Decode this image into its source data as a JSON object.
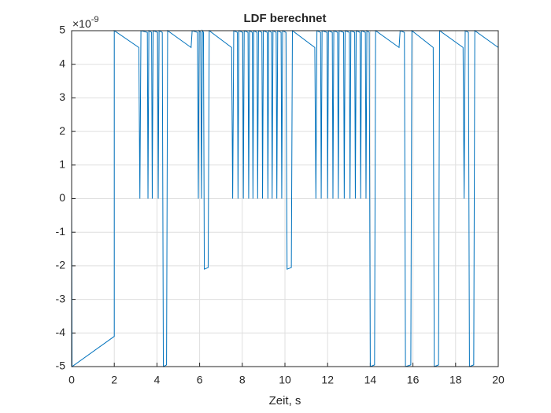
{
  "chart_data": {
    "type": "line",
    "title": "LDF berechnet",
    "x_label": "Zeit, s",
    "y_exponent": {
      "base": "×10",
      "power": "-9"
    },
    "x": [
      0,
      0.02,
      2,
      2,
      3.15,
      3.2,
      3.25,
      3.55,
      3.58,
      3.62,
      3.75,
      3.78,
      3.82,
      4.03,
      4.06,
      4.1,
      4.25,
      4.3,
      4.45,
      4.5,
      5.6,
      5.65,
      5.9,
      5.94,
      5.98,
      6.05,
      6.09,
      6.13,
      6.18,
      6.22,
      6.4,
      6.45,
      7.5,
      7.55,
      7.6,
      7.77,
      7.8,
      7.84,
      8.02,
      8.05,
      8.09,
      8.27,
      8.3,
      8.34,
      8.47,
      8.5,
      8.54,
      8.69,
      8.72,
      8.76,
      8.92,
      8.95,
      8.99,
      9.17,
      9.2,
      9.24,
      9.37,
      9.4,
      9.44,
      9.59,
      9.62,
      9.66,
      9.82,
      9.85,
      9.89,
      10.05,
      10.1,
      10.3,
      10.35,
      11.4,
      11.45,
      11.5,
      11.67,
      11.7,
      11.74,
      11.97,
      12,
      12.04,
      12.22,
      12.25,
      12.29,
      12.47,
      12.5,
      12.54,
      12.75,
      12.78,
      12.82,
      13.02,
      13.05,
      13.09,
      13.27,
      13.3,
      13.34,
      13.52,
      13.55,
      13.59,
      13.77,
      13.8,
      13.84,
      13.95,
      14,
      14.2,
      14.25,
      15.35,
      15.4,
      15.6,
      15.65,
      15.9,
      15.95,
      16.95,
      17,
      17.2,
      17.25,
      18.35,
      18.4,
      18.45,
      18.6,
      18.65,
      18.85,
      18.9,
      20
    ],
    "series": [
      {
        "color": "#0072bd",
        "values": [
          0,
          -5,
          -4.1,
          5,
          4.5,
          0,
          5,
          4.95,
          0,
          5,
          4.95,
          0,
          5,
          4.95,
          0,
          5,
          4.95,
          -5,
          -4.95,
          5,
          4.5,
          5,
          4.95,
          0,
          5,
          4.95,
          0,
          5,
          4.95,
          -2.1,
          -2.05,
          5,
          4.5,
          0,
          5,
          4.95,
          0,
          5,
          4.95,
          0,
          5,
          4.95,
          0,
          5,
          4.95,
          0,
          5,
          4.95,
          0,
          5,
          4.95,
          0,
          5,
          4.95,
          0,
          5,
          4.95,
          0,
          5,
          4.95,
          0,
          5,
          4.95,
          0,
          5,
          4.95,
          -2.1,
          -2.05,
          5,
          4.5,
          0,
          5,
          4.95,
          0,
          5,
          4.95,
          0,
          5,
          4.95,
          0,
          5,
          4.95,
          0,
          5,
          4.95,
          0,
          5,
          4.95,
          0,
          5,
          4.95,
          0,
          5,
          4.95,
          0,
          5,
          4.95,
          0,
          5,
          4.95,
          -5,
          -4.95,
          5,
          4.5,
          5,
          4.95,
          -5,
          -4.95,
          5,
          4.5,
          -5,
          -4.95,
          5,
          4.5,
          0,
          5,
          4.95,
          -5,
          -4.95,
          5,
          4.5
        ]
      }
    ],
    "xlim": [
      0,
      20
    ],
    "ylim": [
      -5,
      5
    ],
    "xticks": [
      0,
      2,
      4,
      6,
      8,
      10,
      12,
      14,
      16,
      18,
      20
    ],
    "yticks": [
      -5,
      -4,
      -3,
      -2,
      -1,
      0,
      1,
      2,
      3,
      4,
      5
    ],
    "grid": true
  }
}
